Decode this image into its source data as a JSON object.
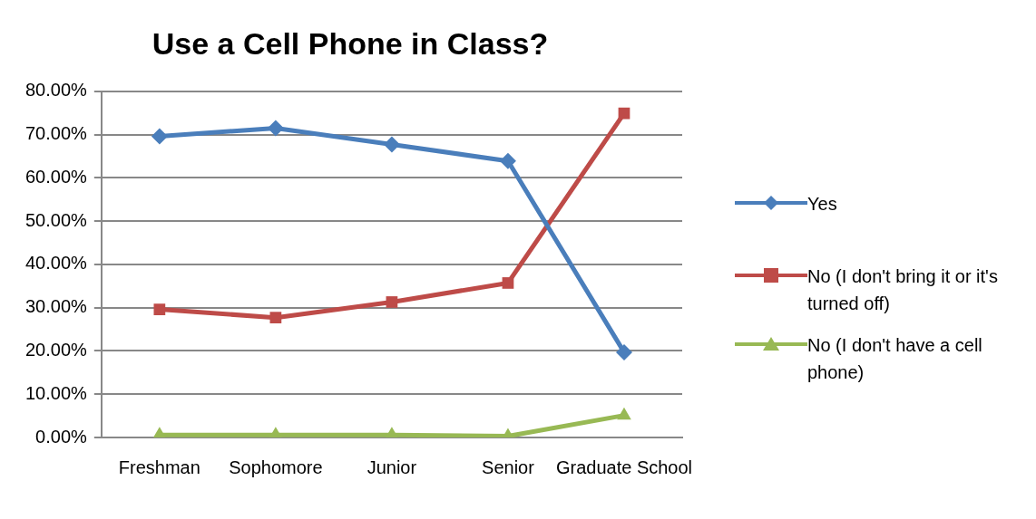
{
  "chart_data": {
    "type": "line",
    "title": "Use a Cell Phone in Class?",
    "categories": [
      "Freshman",
      "Sophomore",
      "Junior",
      "Senior",
      "Graduate School"
    ],
    "series": [
      {
        "name": "Yes",
        "color": "#4a7ebb",
        "marker": "diamond",
        "values": [
          69.6,
          71.5,
          67.7,
          63.9,
          19.7
        ]
      },
      {
        "name": "No (I don't bring it or it's turned off)",
        "color": "#be4b48",
        "marker": "square",
        "values": [
          29.6,
          27.7,
          31.3,
          35.7,
          74.9
        ]
      },
      {
        "name": "No (I don't have a cell phone)",
        "color": "#98b954",
        "marker": "triangle",
        "values": [
          0.6,
          0.6,
          0.6,
          0.3,
          5.1
        ]
      }
    ],
    "ylim": [
      0,
      80
    ],
    "yticks": [
      {
        "value": 0,
        "label": "0.00%"
      },
      {
        "value": 10,
        "label": "10.00%"
      },
      {
        "value": 20,
        "label": "20.00%"
      },
      {
        "value": 30,
        "label": "30.00%"
      },
      {
        "value": 40,
        "label": "40.00%"
      },
      {
        "value": 50,
        "label": "50.00%"
      },
      {
        "value": 60,
        "label": "60.00%"
      },
      {
        "value": 70,
        "label": "70.00%"
      },
      {
        "value": 80,
        "label": "80.00%"
      }
    ],
    "grid": "y",
    "legend": "right"
  }
}
